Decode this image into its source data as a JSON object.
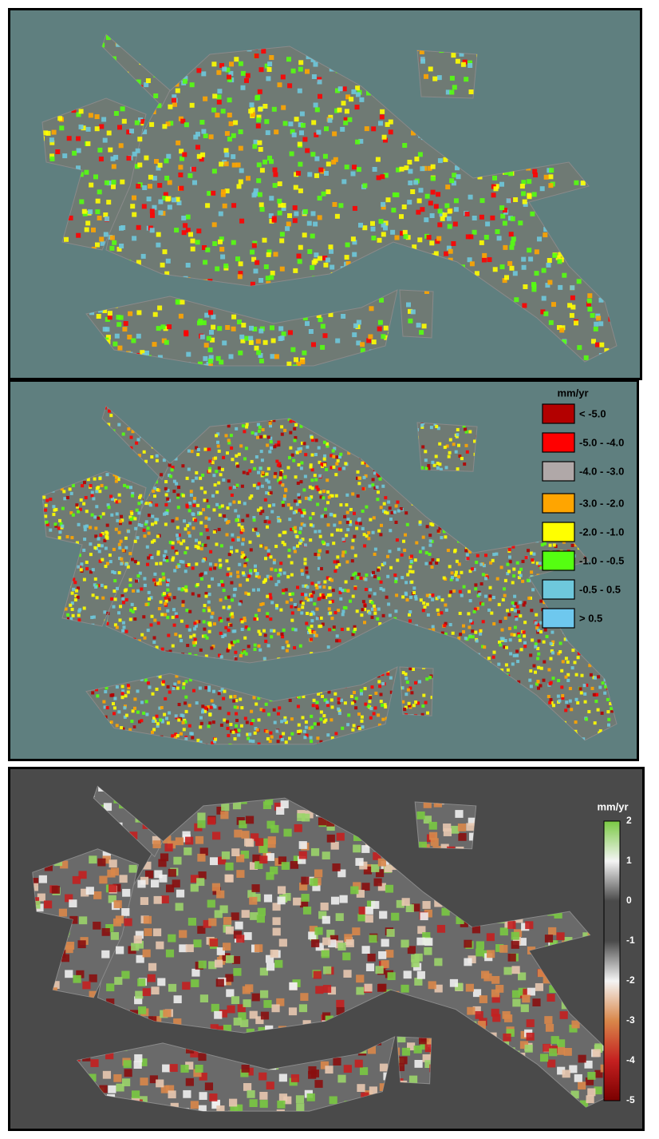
{
  "legend_top": {
    "title": "mm/yr",
    "items": [
      {
        "label": "< -5.0",
        "color": "#b30000"
      },
      {
        "label": "-5.0 - -4.0",
        "color": "#ff0000"
      },
      {
        "label": "-4.0 - -3.0",
        "color": "#b0a8a8"
      },
      {
        "label": "-3.0 - -2.0",
        "color": "#ffa500"
      },
      {
        "label": "-2.0 - -1.0",
        "color": "#ffff00"
      },
      {
        "label": "-1.0 - -0.5",
        "color": "#55ff11"
      },
      {
        "label": "-0.5 -  0.5",
        "color": "#6ec8dc"
      },
      {
        "label": "> 0.5",
        "color": "#6ec8ee"
      }
    ]
  },
  "colorbar": {
    "title": "mm/yr",
    "ticks": [
      "2",
      "1",
      "0",
      "-1",
      "-2",
      "-3",
      "-4",
      "-5"
    ],
    "colors": [
      "#7ac943",
      "#f4f4f4",
      "#4a4a4a",
      "#4a4a4a",
      "#f4f4f4",
      "#d9874a",
      "#c42020",
      "#7a0000"
    ]
  }
}
